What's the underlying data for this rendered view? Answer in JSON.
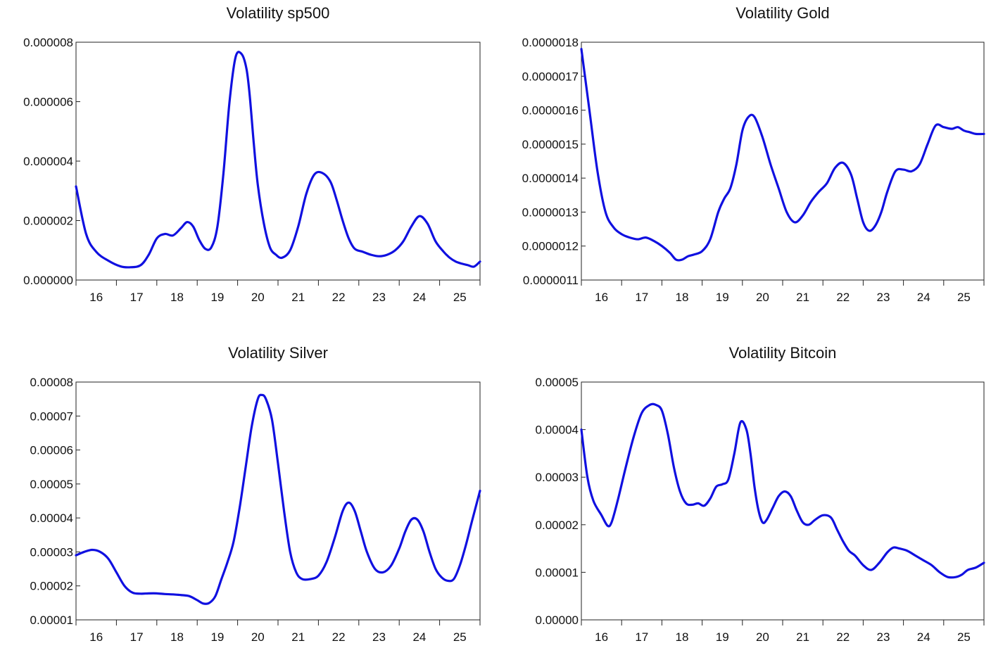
{
  "chart_data": [
    {
      "type": "line",
      "title": "Volatility sp500",
      "xlabel": "",
      "ylabel": "",
      "xlim": [
        15.5,
        25.5
      ],
      "ylim": [
        0,
        8e-06
      ],
      "xticks": [
        16,
        17,
        18,
        19,
        20,
        21,
        22,
        23,
        24,
        25
      ],
      "xtick_labels": [
        "16",
        "17",
        "18",
        "19",
        "20",
        "21",
        "22",
        "23",
        "24",
        "25"
      ],
      "yticks": [
        0,
        2e-06,
        4e-06,
        6e-06,
        8e-06
      ],
      "ytick_labels": [
        "0.000000",
        "0.000002",
        "0.000004",
        "0.000006",
        "0.000008"
      ],
      "grid": false,
      "color": "#1010e0",
      "series": [
        {
          "x": [
            15.5,
            15.75,
            16.0,
            16.3,
            16.6,
            16.85,
            17.1,
            17.3,
            17.5,
            17.7,
            17.9,
            18.1,
            18.25,
            18.4,
            18.55,
            18.7,
            18.85,
            19.0,
            19.15,
            19.3,
            19.45,
            19.6,
            19.72,
            19.8,
            19.9,
            20.0,
            20.15,
            20.3,
            20.45,
            20.6,
            20.8,
            21.0,
            21.2,
            21.4,
            21.6,
            21.8,
            21.95,
            22.1,
            22.25,
            22.4,
            22.6,
            22.8,
            23.0,
            23.2,
            23.4,
            23.6,
            23.8,
            24.0,
            24.2,
            24.4,
            24.6,
            24.75,
            24.9,
            25.05,
            25.2,
            25.35,
            25.5
          ],
          "y": [
            3.15e-06,
            1.55e-06,
            9.5e-07,
            6.5e-07,
            4.6e-07,
            4.3e-07,
            5e-07,
            8.5e-07,
            1.4e-06,
            1.55e-06,
            1.5e-06,
            1.75e-06,
            1.95e-06,
            1.8e-06,
            1.35e-06,
            1.05e-06,
            1.1e-06,
            1.8e-06,
            3.6e-06,
            6e-06,
            7.5e-06,
            7.6e-06,
            7.1e-06,
            6.2e-06,
            4.6e-06,
            3.2e-06,
            1.9e-06,
            1.1e-06,
            8.5e-07,
            7.5e-07,
            1e-06,
            1.8e-06,
            2.9e-06,
            3.55e-06,
            3.6e-06,
            3.3e-06,
            2.7e-06,
            2e-06,
            1.4e-06,
            1.05e-06,
            9.5e-07,
            8.5e-07,
            8e-07,
            8.5e-07,
            1e-06,
            1.3e-06,
            1.8e-06,
            2.15e-06,
            1.9e-06,
            1.3e-06,
            9.5e-07,
            7.5e-07,
            6.2e-07,
            5.5e-07,
            5e-07,
            4.5e-07,
            6.2e-07
          ]
        }
      ]
    },
    {
      "type": "line",
      "title": "Volatility Gold",
      "xlabel": "",
      "ylabel": "",
      "xlim": [
        15.5,
        25.5
      ],
      "ylim": [
        1.1e-06,
        1.8e-06
      ],
      "xticks": [
        16,
        17,
        18,
        19,
        20,
        21,
        22,
        23,
        24,
        25
      ],
      "xtick_labels": [
        "16",
        "17",
        "18",
        "19",
        "20",
        "21",
        "22",
        "23",
        "24",
        "25"
      ],
      "yticks": [
        1.1e-06,
        1.2e-06,
        1.3e-06,
        1.4e-06,
        1.5e-06,
        1.6e-06,
        1.7e-06,
        1.8e-06
      ],
      "ytick_labels": [
        "0.0000011",
        "0.0000012",
        "0.0000013",
        "0.0000014",
        "0.0000015",
        "0.0000016",
        "0.0000017",
        "0.0000018"
      ],
      "grid": false,
      "color": "#1010e0",
      "series": [
        {
          "x": [
            15.5,
            15.7,
            15.9,
            16.1,
            16.3,
            16.5,
            16.7,
            16.9,
            17.1,
            17.3,
            17.5,
            17.7,
            17.85,
            18.0,
            18.15,
            18.3,
            18.5,
            18.7,
            18.9,
            19.05,
            19.2,
            19.35,
            19.5,
            19.65,
            19.8,
            20.0,
            20.2,
            20.4,
            20.6,
            20.8,
            21.0,
            21.2,
            21.4,
            21.6,
            21.8,
            22.0,
            22.2,
            22.35,
            22.5,
            22.65,
            22.8,
            22.95,
            23.1,
            23.3,
            23.5,
            23.7,
            23.9,
            24.1,
            24.3,
            24.5,
            24.7,
            24.85,
            25.0,
            25.15,
            25.3,
            25.5
          ],
          "y": [
            1.78e-06,
            1.6e-06,
            1.42e-06,
            1.3e-06,
            1.255e-06,
            1.235e-06,
            1.225e-06,
            1.22e-06,
            1.225e-06,
            1.215e-06,
            1.2e-06,
            1.18e-06,
            1.16e-06,
            1.16e-06,
            1.17e-06,
            1.175e-06,
            1.185e-06,
            1.22e-06,
            1.3e-06,
            1.34e-06,
            1.37e-06,
            1.44e-06,
            1.54e-06,
            1.58e-06,
            1.58e-06,
            1.52e-06,
            1.44e-06,
            1.37e-06,
            1.3e-06,
            1.27e-06,
            1.29e-06,
            1.33e-06,
            1.36e-06,
            1.385e-06,
            1.43e-06,
            1.445e-06,
            1.41e-06,
            1.34e-06,
            1.27e-06,
            1.245e-06,
            1.26e-06,
            1.3e-06,
            1.36e-06,
            1.42e-06,
            1.425e-06,
            1.42e-06,
            1.44e-06,
            1.5e-06,
            1.555e-06,
            1.55e-06,
            1.545e-06,
            1.55e-06,
            1.54e-06,
            1.535e-06,
            1.53e-06,
            1.53e-06
          ]
        }
      ]
    },
    {
      "type": "line",
      "title": "Volatility Silver",
      "xlabel": "",
      "ylabel": "",
      "xlim": [
        15.5,
        25.5
      ],
      "ylim": [
        1e-05,
        8e-05
      ],
      "xticks": [
        16,
        17,
        18,
        19,
        20,
        21,
        22,
        23,
        24,
        25
      ],
      "xtick_labels": [
        "16",
        "17",
        "18",
        "19",
        "20",
        "21",
        "22",
        "23",
        "24",
        "25"
      ],
      "yticks": [
        1e-05,
        2e-05,
        3e-05,
        4e-05,
        5e-05,
        6e-05,
        7e-05,
        8e-05
      ],
      "ytick_labels": [
        "0.00001",
        "0.00002",
        "0.00003",
        "0.00004",
        "0.00005",
        "0.00006",
        "0.00007",
        "0.00008"
      ],
      "grid": false,
      "color": "#1010e0",
      "series": [
        {
          "x": [
            15.5,
            15.7,
            15.9,
            16.1,
            16.3,
            16.5,
            16.7,
            16.9,
            17.1,
            17.3,
            17.5,
            17.7,
            17.9,
            18.1,
            18.3,
            18.5,
            18.65,
            18.8,
            18.95,
            19.1,
            19.25,
            19.4,
            19.55,
            19.7,
            19.85,
            20.0,
            20.1,
            20.2,
            20.35,
            20.5,
            20.65,
            20.8,
            20.95,
            21.1,
            21.3,
            21.5,
            21.7,
            21.9,
            22.1,
            22.25,
            22.4,
            22.55,
            22.7,
            22.9,
            23.1,
            23.3,
            23.5,
            23.65,
            23.8,
            23.95,
            24.1,
            24.25,
            24.4,
            24.55,
            24.7,
            24.85,
            25.0,
            25.15,
            25.3,
            25.5
          ],
          "y": [
            2.9e-05,
            3e-05,
            3.06e-05,
            3e-05,
            2.8e-05,
            2.4e-05,
            2e-05,
            1.8e-05,
            1.77e-05,
            1.78e-05,
            1.78e-05,
            1.76e-05,
            1.75e-05,
            1.73e-05,
            1.7e-05,
            1.58e-05,
            1.48e-05,
            1.5e-05,
            1.7e-05,
            2.2e-05,
            2.7e-05,
            3.3e-05,
            4.3e-05,
            5.5e-05,
            6.7e-05,
            7.5e-05,
            7.62e-05,
            7.5e-05,
            6.9e-05,
            5.6e-05,
            4.2e-05,
            3e-05,
            2.4e-05,
            2.2e-05,
            2.2e-05,
            2.3e-05,
            2.7e-05,
            3.4e-05,
            4.2e-05,
            4.45e-05,
            4.2e-05,
            3.6e-05,
            3e-05,
            2.5e-05,
            2.4e-05,
            2.6e-05,
            3.1e-05,
            3.6e-05,
            3.95e-05,
            3.95e-05,
            3.6e-05,
            3e-05,
            2.5e-05,
            2.25e-05,
            2.15e-05,
            2.2e-05,
            2.6e-05,
            3.2e-05,
            3.9e-05,
            4.8e-05
          ]
        }
      ]
    },
    {
      "type": "line",
      "title": "Volatility Bitcoin",
      "xlabel": "",
      "ylabel": "",
      "xlim": [
        15.5,
        25.5
      ],
      "ylim": [
        0,
        5e-05
      ],
      "xticks": [
        16,
        17,
        18,
        19,
        20,
        21,
        22,
        23,
        24,
        25
      ],
      "xtick_labels": [
        "16",
        "17",
        "18",
        "19",
        "20",
        "21",
        "22",
        "23",
        "24",
        "25"
      ],
      "yticks": [
        0,
        1e-05,
        2e-05,
        3e-05,
        4e-05,
        5e-05
      ],
      "ytick_labels": [
        "0.00000",
        "0.00001",
        "0.00002",
        "0.00003",
        "0.00004",
        "0.00005"
      ],
      "grid": false,
      "color": "#1010e0",
      "series": [
        {
          "x": [
            15.5,
            15.65,
            15.8,
            16.0,
            16.15,
            16.25,
            16.4,
            16.6,
            16.8,
            17.0,
            17.2,
            17.35,
            17.5,
            17.65,
            17.8,
            17.95,
            18.1,
            18.25,
            18.4,
            18.55,
            18.7,
            18.85,
            19.0,
            19.15,
            19.3,
            19.45,
            19.6,
            19.7,
            19.8,
            19.9,
            20.0,
            20.1,
            20.25,
            20.4,
            20.55,
            20.7,
            20.85,
            21.0,
            21.15,
            21.3,
            21.5,
            21.7,
            21.85,
            22.0,
            22.15,
            22.3,
            22.5,
            22.7,
            22.9,
            23.1,
            23.25,
            23.4,
            23.6,
            23.8,
            24.0,
            24.2,
            24.4,
            24.6,
            24.8,
            24.95,
            25.1,
            25.3,
            25.5
          ],
          "y": [
            4e-05,
            3e-05,
            2.5e-05,
            2.2e-05,
            1.98e-05,
            2.05e-05,
            2.5e-05,
            3.2e-05,
            3.85e-05,
            4.35e-05,
            4.52e-05,
            4.52e-05,
            4.4e-05,
            3.9e-05,
            3.2e-05,
            2.7e-05,
            2.45e-05,
            2.42e-05,
            2.45e-05,
            2.4e-05,
            2.55e-05,
            2.8e-05,
            2.85e-05,
            2.95e-05,
            3.5e-05,
            4.15e-05,
            4e-05,
            3.5e-05,
            2.8e-05,
            2.3e-05,
            2.05e-05,
            2.1e-05,
            2.35e-05,
            2.6e-05,
            2.7e-05,
            2.6e-05,
            2.3e-05,
            2.05e-05,
            2e-05,
            2.1e-05,
            2.2e-05,
            2.15e-05,
            1.9e-05,
            1.65e-05,
            1.45e-05,
            1.35e-05,
            1.15e-05,
            1.05e-05,
            1.2e-05,
            1.42e-05,
            1.52e-05,
            1.5e-05,
            1.45e-05,
            1.35e-05,
            1.25e-05,
            1.15e-05,
            1e-05,
            9e-06,
            9e-06,
            9.5e-06,
            1.05e-05,
            1.1e-05,
            1.2e-05
          ]
        }
      ]
    }
  ]
}
